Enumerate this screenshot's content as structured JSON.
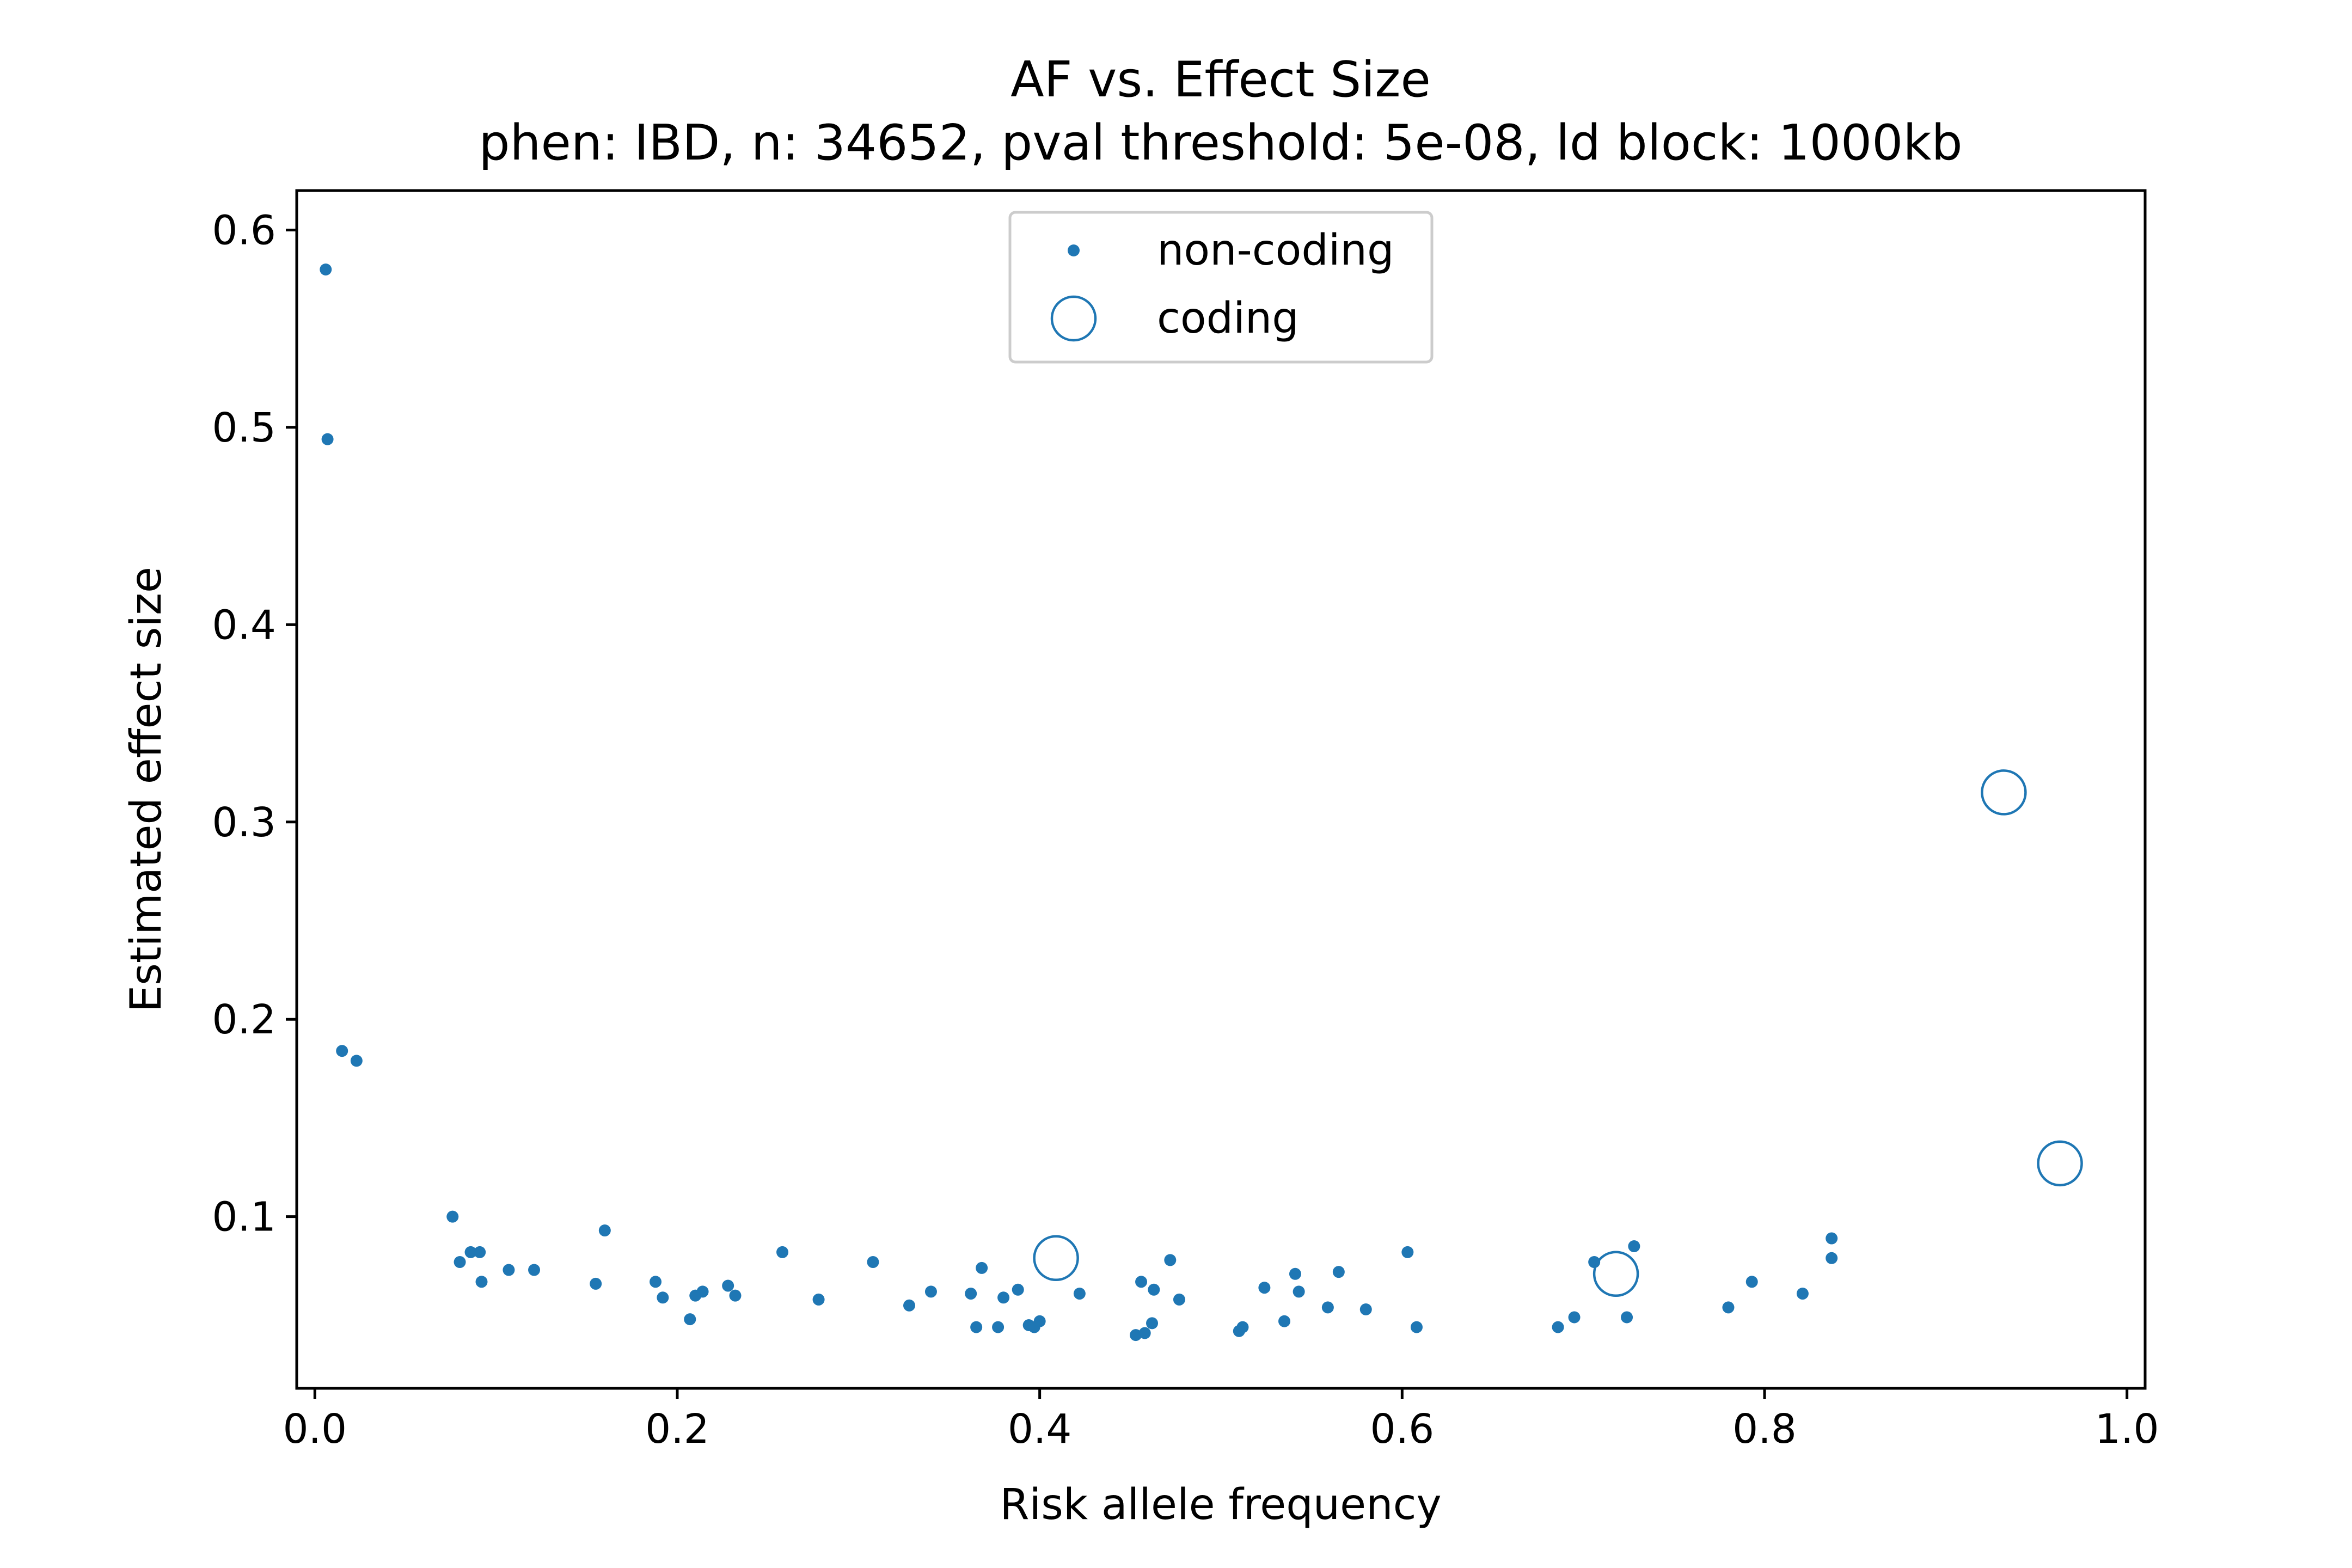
{
  "colors": {
    "series": "#1f77b4",
    "axis": "#000000",
    "legend_border": "#cccccc"
  },
  "chart_data": {
    "type": "scatter",
    "title": "AF vs. Effect Size",
    "subtitle": "phen: IBD, n: 34652, pval threshold: 5e-08, ld block: 1000kb",
    "xlabel": "Risk allele frequency",
    "ylabel": "Estimated effect size",
    "xlim": [
      -0.01,
      1.01
    ],
    "ylim": [
      0.013,
      0.62
    ],
    "x_ticks": [
      0.0,
      0.2,
      0.4,
      0.6,
      0.8,
      1.0
    ],
    "x_tick_labels": [
      "0.0",
      "0.2",
      "0.4",
      "0.6",
      "0.8",
      "1.0"
    ],
    "y_ticks": [
      0.1,
      0.2,
      0.3,
      0.4,
      0.5,
      0.6
    ],
    "y_tick_labels": [
      "0.1",
      "0.2",
      "0.3",
      "0.4",
      "0.5",
      "0.6"
    ],
    "grid": false,
    "legend_position": "top-center",
    "series": [
      {
        "name": "non-coding",
        "marker": "small-dot",
        "points": [
          [
            0.006,
            0.58
          ],
          [
            0.007,
            0.494
          ],
          [
            0.015,
            0.184
          ],
          [
            0.023,
            0.179
          ],
          [
            0.076,
            0.1
          ],
          [
            0.08,
            0.077
          ],
          [
            0.086,
            0.082
          ],
          [
            0.091,
            0.082
          ],
          [
            0.092,
            0.067
          ],
          [
            0.107,
            0.073
          ],
          [
            0.121,
            0.073
          ],
          [
            0.155,
            0.066
          ],
          [
            0.16,
            0.093
          ],
          [
            0.188,
            0.067
          ],
          [
            0.192,
            0.059
          ],
          [
            0.207,
            0.048
          ],
          [
            0.21,
            0.06
          ],
          [
            0.214,
            0.062
          ],
          [
            0.228,
            0.065
          ],
          [
            0.232,
            0.06
          ],
          [
            0.258,
            0.082
          ],
          [
            0.278,
            0.058
          ],
          [
            0.308,
            0.077
          ],
          [
            0.328,
            0.055
          ],
          [
            0.34,
            0.062
          ],
          [
            0.362,
            0.061
          ],
          [
            0.365,
            0.044
          ],
          [
            0.368,
            0.074
          ],
          [
            0.377,
            0.044
          ],
          [
            0.38,
            0.059
          ],
          [
            0.388,
            0.063
          ],
          [
            0.394,
            0.045
          ],
          [
            0.397,
            0.044
          ],
          [
            0.4,
            0.047
          ],
          [
            0.422,
            0.061
          ],
          [
            0.453,
            0.04
          ],
          [
            0.456,
            0.067
          ],
          [
            0.458,
            0.041
          ],
          [
            0.462,
            0.046
          ],
          [
            0.463,
            0.063
          ],
          [
            0.472,
            0.078
          ],
          [
            0.477,
            0.058
          ],
          [
            0.51,
            0.042
          ],
          [
            0.512,
            0.044
          ],
          [
            0.524,
            0.064
          ],
          [
            0.535,
            0.047
          ],
          [
            0.541,
            0.071
          ],
          [
            0.543,
            0.062
          ],
          [
            0.559,
            0.054
          ],
          [
            0.565,
            0.072
          ],
          [
            0.58,
            0.053
          ],
          [
            0.603,
            0.082
          ],
          [
            0.608,
            0.044
          ],
          [
            0.686,
            0.044
          ],
          [
            0.695,
            0.049
          ],
          [
            0.706,
            0.077
          ],
          [
            0.724,
            0.049
          ],
          [
            0.728,
            0.085
          ],
          [
            0.78,
            0.054
          ],
          [
            0.793,
            0.067
          ],
          [
            0.821,
            0.061
          ],
          [
            0.837,
            0.089
          ],
          [
            0.837,
            0.079
          ]
        ]
      },
      {
        "name": "coding",
        "marker": "open-circle",
        "points": [
          [
            0.409,
            0.079
          ],
          [
            0.718,
            0.071
          ],
          [
            0.932,
            0.315
          ],
          [
            0.963,
            0.127
          ]
        ]
      }
    ]
  }
}
